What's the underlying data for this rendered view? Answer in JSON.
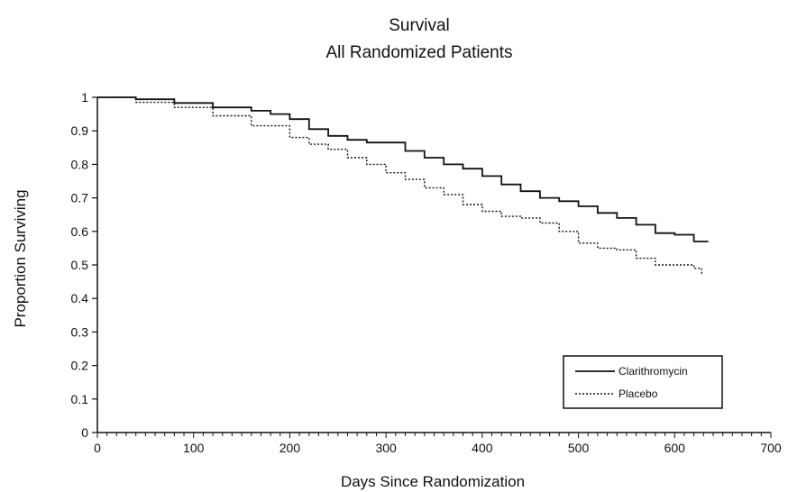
{
  "chart_data": {
    "type": "line",
    "title": "Survival",
    "subtitle": "All Randomized Patients",
    "xlabel": "Days Since Randomization",
    "ylabel": "Proportion Surviving",
    "xlim": [
      0,
      700
    ],
    "ylim": [
      0,
      1
    ],
    "x_ticks": [
      "0",
      "100",
      "200",
      "300",
      "400",
      "500",
      "600",
      "700"
    ],
    "y_ticks": [
      "0",
      "0.1",
      "0.2",
      "0.3",
      "0.4",
      "0.5",
      "0.6",
      "0.7",
      "0.8",
      "0.9",
      "1"
    ],
    "grid": false,
    "legend_position": "bottom-right",
    "series": [
      {
        "name": "Clarithromycin",
        "style": "solid",
        "color": "#111111",
        "x": [
          0,
          40,
          80,
          120,
          160,
          180,
          200,
          220,
          240,
          260,
          280,
          300,
          320,
          340,
          360,
          380,
          400,
          420,
          440,
          460,
          480,
          500,
          520,
          540,
          560,
          580,
          600,
          620,
          635
        ],
        "y": [
          1.0,
          0.994,
          0.983,
          0.97,
          0.96,
          0.95,
          0.935,
          0.905,
          0.885,
          0.873,
          0.865,
          0.865,
          0.84,
          0.82,
          0.8,
          0.787,
          0.765,
          0.74,
          0.72,
          0.7,
          0.69,
          0.675,
          0.655,
          0.64,
          0.62,
          0.595,
          0.59,
          0.57,
          0.57
        ]
      },
      {
        "name": "Placebo",
        "style": "dotted",
        "color": "#111111",
        "x": [
          0,
          40,
          80,
          120,
          160,
          200,
          220,
          240,
          260,
          280,
          300,
          320,
          340,
          360,
          380,
          400,
          420,
          440,
          460,
          480,
          500,
          520,
          540,
          560,
          580,
          600,
          620,
          628
        ],
        "y": [
          1.0,
          0.985,
          0.97,
          0.945,
          0.915,
          0.88,
          0.86,
          0.845,
          0.82,
          0.8,
          0.775,
          0.755,
          0.73,
          0.71,
          0.68,
          0.66,
          0.645,
          0.64,
          0.625,
          0.6,
          0.565,
          0.55,
          0.545,
          0.52,
          0.5,
          0.5,
          0.49,
          0.47
        ]
      }
    ]
  }
}
